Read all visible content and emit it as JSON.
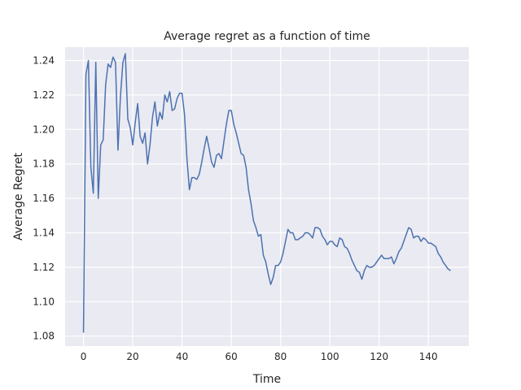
{
  "chart_data": {
    "type": "line",
    "title": "Average regret as a function of time",
    "xlabel": "Time",
    "ylabel": "Average Regret",
    "xlim": [
      -7.45,
      156.45
    ],
    "ylim": [
      1.0742,
      1.2478
    ],
    "xticks": [
      0,
      20,
      40,
      60,
      80,
      100,
      120,
      140
    ],
    "xtick_labels": [
      "0",
      "20",
      "40",
      "60",
      "80",
      "100",
      "120",
      "140"
    ],
    "yticks": [
      1.08,
      1.1,
      1.12,
      1.14,
      1.16,
      1.18,
      1.2,
      1.22,
      1.24
    ],
    "ytick_labels": [
      "1.08",
      "1.10",
      "1.12",
      "1.14",
      "1.16",
      "1.18",
      "1.20",
      "1.22",
      "1.24"
    ],
    "grid": true,
    "background": "#eaeaf2",
    "line_color": "#4c72b0",
    "series": [
      {
        "values": [
          1.082,
          1.232,
          1.24,
          1.178,
          1.163,
          1.239,
          1.16,
          1.191,
          1.194,
          1.226,
          1.238,
          1.236,
          1.242,
          1.239,
          1.188,
          1.219,
          1.239,
          1.244,
          1.206,
          1.201,
          1.191,
          1.204,
          1.215,
          1.196,
          1.192,
          1.198,
          1.18,
          1.191,
          1.207,
          1.216,
          1.202,
          1.21,
          1.206,
          1.22,
          1.216,
          1.222,
          1.211,
          1.212,
          1.218,
          1.221,
          1.221,
          1.209,
          1.183,
          1.165,
          1.172,
          1.172,
          1.171,
          1.174,
          1.181,
          1.189,
          1.196,
          1.189,
          1.181,
          1.178,
          1.185,
          1.186,
          1.183,
          1.193,
          1.203,
          1.211,
          1.211,
          1.203,
          1.198,
          1.192,
          1.186,
          1.185,
          1.178,
          1.165,
          1.157,
          1.147,
          1.143,
          1.138,
          1.139,
          1.127,
          1.123,
          1.116,
          1.11,
          1.114,
          1.121,
          1.121,
          1.123,
          1.128,
          1.135,
          1.142,
          1.14,
          1.14,
          1.136,
          1.136,
          1.137,
          1.138,
          1.14,
          1.14,
          1.139,
          1.137,
          1.143,
          1.143,
          1.142,
          1.138,
          1.136,
          1.133,
          1.135,
          1.135,
          1.133,
          1.132,
          1.137,
          1.136,
          1.132,
          1.131,
          1.128,
          1.124,
          1.121,
          1.118,
          1.117,
          1.113,
          1.118,
          1.121,
          1.12,
          1.12,
          1.121,
          1.123,
          1.125,
          1.127,
          1.125,
          1.125,
          1.125,
          1.126,
          1.122,
          1.125,
          1.129,
          1.131,
          1.135,
          1.139,
          1.143,
          1.142,
          1.137,
          1.138,
          1.138,
          1.135,
          1.137,
          1.136,
          1.134,
          1.134,
          1.133,
          1.132,
          1.128,
          1.126,
          1.123,
          1.121,
          1.119,
          1.118
        ]
      }
    ]
  }
}
